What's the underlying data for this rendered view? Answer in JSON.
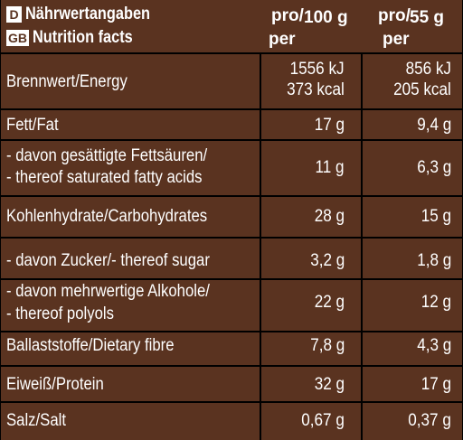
{
  "header": {
    "de_badge": "D",
    "gb_badge": "GB",
    "de_title": "Nährwertangaben",
    "gb_title": "Nutrition facts",
    "col1_pro": "pro/",
    "col1_amount": "100 g",
    "col1_per": "per",
    "col2_pro": "pro/",
    "col2_amount": "55 g",
    "col2_per": "per"
  },
  "rows": [
    {
      "label": "Brennwert/Energy",
      "v1a": "1556 kJ",
      "v1b": "373 kcal",
      "v2a": "856 kJ",
      "v2b": "205 kcal"
    },
    {
      "label": "Fett/Fat",
      "v1": "17 g",
      "v2": "9,4 g"
    },
    {
      "label_a": "- davon gesättigte Fettsäuren/",
      "label_b": "- thereof saturated fatty acids",
      "v1": "11 g",
      "v2": "6,3 g"
    },
    {
      "label": "Kohlenhydrate/Carbohydrates",
      "v1": "28 g",
      "v2": "15 g"
    },
    {
      "label": "- davon Zucker/- thereof sugar",
      "v1": "3,2 g",
      "v2": "1,8 g"
    },
    {
      "label_a": "- davon mehrwertige Alkohole/",
      "label_b": "- thereof polyols",
      "v1": "22 g",
      "v2": "12 g"
    },
    {
      "label": "Ballaststoffe/Dietary fibre",
      "v1": "7,8 g",
      "v2": "4,3 g"
    },
    {
      "label": "Eiweiß/Protein",
      "v1": "32 g",
      "v2": "17 g"
    },
    {
      "label": "Salz/Salt",
      "v1": "0,67 g",
      "v2": "0,37 g"
    }
  ]
}
